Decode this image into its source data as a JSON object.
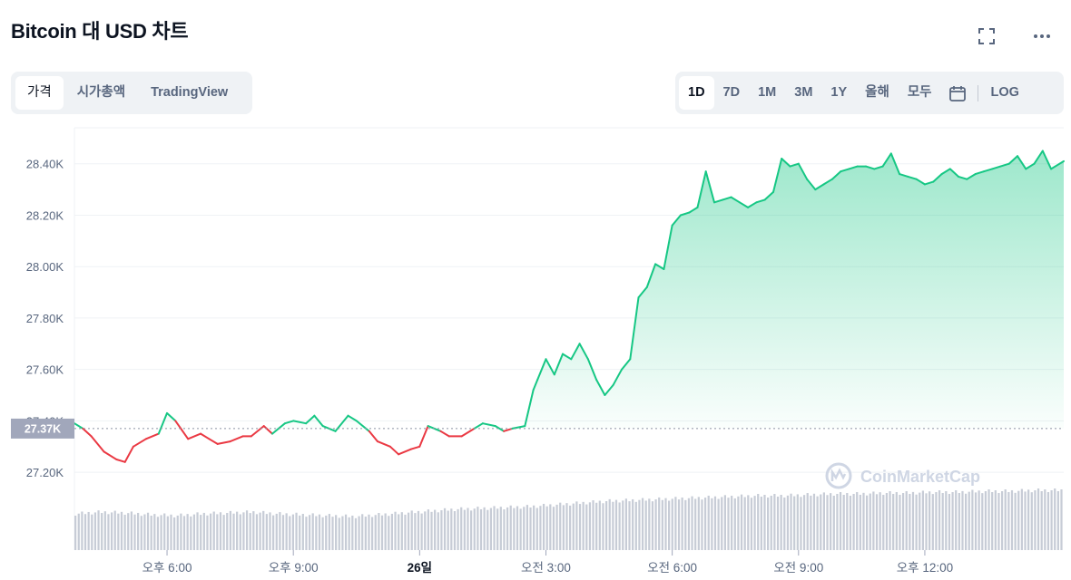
{
  "header": {
    "title": "Bitcoin 대 USD 차트",
    "fullscreen_icon": "expand-icon",
    "more_icon": "more-horizontal-icon"
  },
  "view_tabs": [
    {
      "label": "가격",
      "active": true
    },
    {
      "label": "시가총액",
      "active": false
    },
    {
      "label": "TradingView",
      "active": false
    }
  ],
  "range_tabs": [
    {
      "label": "1D",
      "active": true
    },
    {
      "label": "7D",
      "active": false
    },
    {
      "label": "1M",
      "active": false
    },
    {
      "label": "3M",
      "active": false
    },
    {
      "label": "1Y",
      "active": false
    },
    {
      "label": "올해",
      "active": false
    },
    {
      "label": "모두",
      "active": false
    }
  ],
  "calendar_icon": "calendar-icon",
  "log_label": "LOG",
  "watermark": "CoinMarketCap",
  "chart_data": {
    "type": "area",
    "title": "Bitcoin 대 USD 차트",
    "xlabel": "",
    "ylabel": "",
    "ylim": [
      27130,
      28540
    ],
    "xlim": [
      15.8,
      39.3
    ],
    "y_ticks": [
      {
        "value": 27200,
        "label": "27.20K"
      },
      {
        "value": 27400,
        "label": "27.40K"
      },
      {
        "value": 27600,
        "label": "27.60K"
      },
      {
        "value": 27800,
        "label": "27.80K"
      },
      {
        "value": 28000,
        "label": "28.00K"
      },
      {
        "value": 28200,
        "label": "28.20K"
      },
      {
        "value": 28400,
        "label": "28.40K"
      }
    ],
    "x_ticks": [
      {
        "value": 18,
        "label": "오후 6:00",
        "bold": false
      },
      {
        "value": 21,
        "label": "오후 9:00",
        "bold": false
      },
      {
        "value": 24,
        "label": "26일",
        "bold": true
      },
      {
        "value": 27,
        "label": "오전 3:00",
        "bold": false
      },
      {
        "value": 30,
        "label": "오전 6:00",
        "bold": false
      },
      {
        "value": 33,
        "label": "오전 9:00",
        "bold": false
      },
      {
        "value": 36,
        "label": "오후 12:00",
        "bold": false
      }
    ],
    "reference_price": 27370,
    "reference_label": "27.37K",
    "colors": {
      "up": "#16c784",
      "down": "#ea3943",
      "reference_bg": "#a1a7bb",
      "volume": "#c7ccd6"
    },
    "grid": true,
    "series": [
      {
        "name": "",
        "x": [
          15.8,
          16.0,
          16.2,
          16.5,
          16.8,
          17.0,
          17.2,
          17.5,
          17.8,
          18.0,
          18.2,
          18.5,
          18.8,
          19.0,
          19.2,
          19.5,
          19.8,
          20.0,
          20.3,
          20.5,
          20.8,
          21.0,
          21.3,
          21.5,
          21.7,
          22.0,
          22.3,
          22.5,
          22.8,
          23.0,
          23.3,
          23.5,
          23.8,
          24.0,
          24.2,
          24.5,
          24.7,
          25.0,
          25.3,
          25.5,
          25.8,
          26.0,
          26.2,
          26.5,
          26.7,
          26.8,
          27.0,
          27.2,
          27.4,
          27.6,
          27.8,
          28.0,
          28.2,
          28.4,
          28.6,
          28.8,
          29.0,
          29.2,
          29.4,
          29.6,
          29.8,
          30.0,
          30.2,
          30.4,
          30.6,
          30.8,
          31.0,
          31.2,
          31.4,
          31.6,
          31.8,
          32.0,
          32.2,
          32.4,
          32.6,
          32.8,
          33.0,
          33.2,
          33.4,
          33.6,
          33.8,
          34.0,
          34.2,
          34.4,
          34.6,
          34.8,
          35.0,
          35.2,
          35.4,
          35.6,
          35.8,
          36.0,
          36.2,
          36.4,
          36.6,
          36.8,
          37.0,
          37.2,
          37.4,
          37.6,
          37.8,
          38.0,
          38.2,
          38.4,
          38.6,
          38.8,
          39.0,
          39.2,
          39.3
        ],
        "values": [
          27390,
          27370,
          27340,
          27280,
          27250,
          27240,
          27300,
          27330,
          27350,
          27430,
          27400,
          27330,
          27350,
          27330,
          27310,
          27320,
          27340,
          27340,
          27380,
          27350,
          27390,
          27400,
          27390,
          27420,
          27380,
          27360,
          27420,
          27400,
          27360,
          27320,
          27300,
          27270,
          27290,
          27300,
          27380,
          27360,
          27340,
          27340,
          27370,
          27390,
          27380,
          27360,
          27370,
          27380,
          27520,
          27560,
          27640,
          27580,
          27660,
          27640,
          27700,
          27640,
          27560,
          27500,
          27540,
          27600,
          27640,
          27880,
          27920,
          28010,
          27990,
          28160,
          28200,
          28210,
          28230,
          28370,
          28250,
          28260,
          28270,
          28250,
          28230,
          28250,
          28260,
          28290,
          28420,
          28390,
          28400,
          28340,
          28300,
          28320,
          28340,
          28370,
          28380,
          28390,
          28390,
          28380,
          28390,
          28440,
          28360,
          28350,
          28340,
          28320,
          28330,
          28360,
          28380,
          28350,
          28340,
          28360,
          28370,
          28380,
          28390,
          28400,
          28430,
          28380,
          28400,
          28450,
          28380,
          28400,
          28410
        ]
      }
    ],
    "volume": {
      "x_start": 15.8,
      "x_end": 39.3,
      "values": [
        40,
        42,
        41,
        39,
        38,
        40,
        41,
        42,
        40,
        39,
        38,
        37,
        39,
        41,
        43,
        45,
        46,
        47,
        48,
        50,
        52,
        54,
        55,
        56,
        57,
        58,
        59,
        60,
        60,
        61,
        62,
        62,
        63,
        63,
        64,
        64,
        65,
        65,
        66,
        66
      ]
    }
  }
}
